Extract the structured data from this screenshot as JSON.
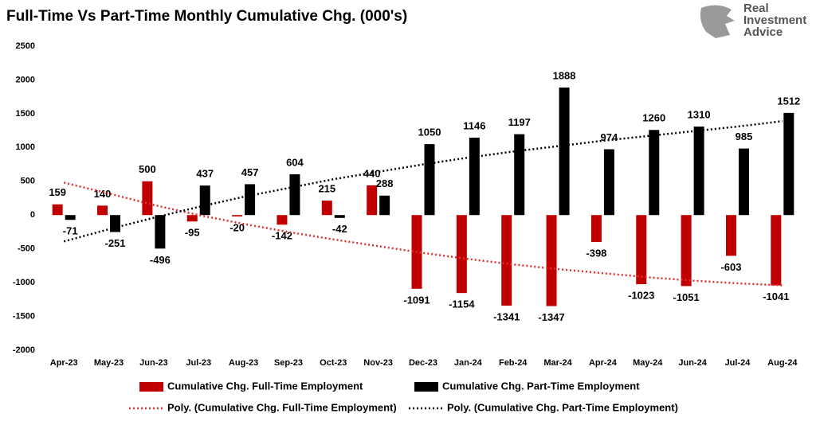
{
  "chart_data": {
    "type": "bar",
    "title": "Full-Time Vs Part-Time Monthly Cumulative Chg. (000's)",
    "categories": [
      "Apr-23",
      "May-23",
      "Jun-23",
      "Jul-23",
      "Aug-23",
      "Sep-23",
      "Oct-23",
      "Nov-23",
      "Dec-23",
      "Jan-24",
      "Feb-24",
      "Mar-24",
      "Apr-24",
      "May-24",
      "Jun-24",
      "Jul-24",
      "Aug-24"
    ],
    "series": [
      {
        "name": "Cumulative Chg. Full-Time Employment",
        "kind": "bar",
        "color": "#c00000",
        "values": [
          159,
          140,
          500,
          -95,
          -20,
          -142,
          215,
          440,
          -1091,
          -1154,
          -1341,
          -1347,
          -398,
          -1023,
          -1051,
          -603,
          -1041
        ]
      },
      {
        "name": "Cumulative Chg. Part-Time Employment",
        "kind": "bar",
        "color": "#000000",
        "values": [
          -71,
          -251,
          -496,
          437,
          457,
          604,
          -42,
          288,
          1050,
          1146,
          1197,
          1888,
          974,
          1260,
          1310,
          985,
          1512
        ]
      },
      {
        "name": "Poly. (Cumulative Chg. Full-Time Employment)",
        "kind": "trend",
        "color": "#e03030",
        "values": [
          480,
          320,
          150,
          0,
          -130,
          -250,
          -360,
          -460,
          -560,
          -650,
          -730,
          -800,
          -860,
          -920,
          -970,
          -1010,
          -1040
        ]
      },
      {
        "name": "Poly. (Cumulative Chg. Part-Time Employment)",
        "kind": "trend",
        "color": "#000000",
        "values": [
          -390,
          -210,
          -40,
          120,
          270,
          400,
          530,
          640,
          750,
          850,
          940,
          1020,
          1100,
          1170,
          1240,
          1310,
          1390
        ]
      }
    ],
    "ylim": [
      -2000,
      2500
    ],
    "yticks": [
      -2000,
      -1500,
      -1000,
      -500,
      0,
      500,
      1000,
      1500,
      2000,
      2500
    ]
  },
  "logo": {
    "lines": [
      "Real",
      "Investment",
      "Advice"
    ]
  }
}
